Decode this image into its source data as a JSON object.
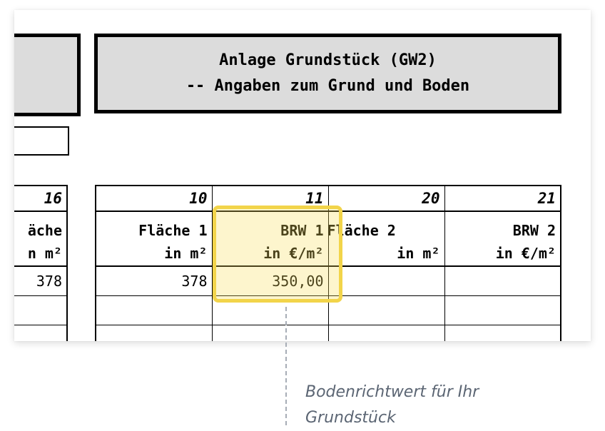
{
  "form": {
    "title_line1": "Anlage Grundstück (GW2)",
    "title_line2": "-- Angaben zum Grund und Boden"
  },
  "left_table": {
    "column_number": "16",
    "header_line1": "äche",
    "header_line2": "n m²",
    "value": "378"
  },
  "table": {
    "columns": [
      {
        "number": "10",
        "line1": "Fläche 1",
        "line2": "in m²",
        "value": "378"
      },
      {
        "number": "11",
        "line1": "BRW 1",
        "line2": "in €/m²",
        "value": "350,00"
      },
      {
        "number": "20",
        "line1": "Fläche 2",
        "line2": "in m²",
        "value": ""
      },
      {
        "number": "21",
        "line1": "BRW 2",
        "line2": "in €/m²",
        "value": ""
      }
    ]
  },
  "annotation": {
    "text_line1": "Bodenrichtwert für Ihr",
    "text_line2": "Grundstück",
    "highlight_color": "#f2d44a",
    "text_color": "#5b6573"
  }
}
